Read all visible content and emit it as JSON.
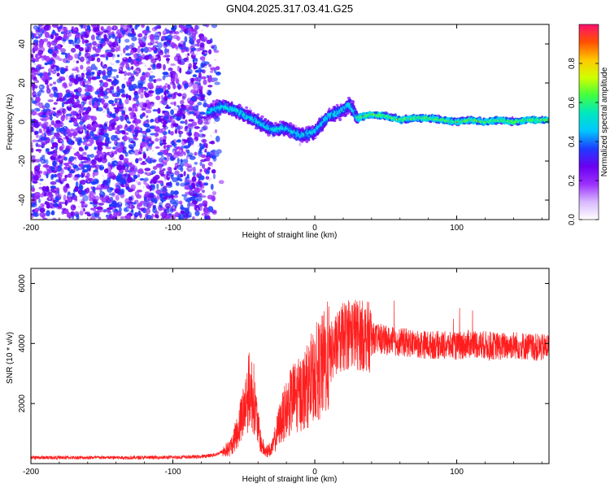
{
  "chart_data": [
    {
      "type": "heatmap",
      "title": "GN04.2025.317.03.41.G25",
      "xlabel": "Height of straight line (km)",
      "ylabel": "Frequency (Hz)",
      "xlim": [
        -200,
        165
      ],
      "ylim": [
        -50,
        50
      ],
      "x_ticks": [
        -200,
        -100,
        0,
        100
      ],
      "y_ticks": [
        -40,
        -20,
        0,
        20,
        40
      ],
      "colorbar": {
        "label": "Normalized spectral amplitude",
        "range": [
          0,
          1
        ],
        "ticks": [
          0.0,
          0.2,
          0.4,
          0.6,
          0.8
        ],
        "colors": [
          "#ffffff",
          "#d8b8ff",
          "#9b30ff",
          "#6a00f0",
          "#1e3cff",
          "#00c8ff",
          "#00e8c0",
          "#40ff40",
          "#d0ff00",
          "#ffc800",
          "#ff5000",
          "#ff1070"
        ]
      },
      "signal_trace": {
        "x": [
          -75,
          -65,
          -55,
          -45,
          -40,
          -30,
          -20,
          -10,
          0,
          10,
          20,
          25,
          30,
          40,
          50,
          60,
          70,
          80,
          90,
          100,
          110,
          120,
          130,
          140,
          150,
          160
        ],
        "freq": [
          5,
          8,
          6,
          2,
          0,
          -4,
          -3,
          -7,
          -5,
          3,
          6,
          9,
          2,
          4,
          3,
          1,
          2,
          2,
          1,
          0,
          1,
          0,
          1,
          0,
          1,
          1
        ]
      },
      "grid": false
    },
    {
      "type": "line",
      "xlabel": "Height of straight line (km)",
      "ylabel": "SNR (10 * v/v)",
      "xlim": [
        -200,
        165
      ],
      "ylim": [
        0,
        6500
      ],
      "x_ticks": [
        -200,
        -100,
        0,
        100
      ],
      "y_ticks": [
        2000,
        4000,
        6000
      ],
      "series": [
        {
          "color": "#ff1e1e",
          "x": [
            -200,
            -180,
            -160,
            -140,
            -120,
            -100,
            -80,
            -70,
            -60,
            -55,
            -50,
            -46,
            -43,
            -40,
            -38,
            -35,
            -30,
            -25,
            -20,
            -15,
            -10,
            -5,
            0,
            5,
            10,
            15,
            20,
            25,
            30,
            40,
            50,
            60,
            70,
            80,
            90,
            100,
            110,
            120,
            130,
            140,
            150,
            160,
            165
          ],
          "y": [
            200,
            200,
            200,
            200,
            200,
            210,
            230,
            300,
            500,
            1000,
            1800,
            2500,
            2200,
            1200,
            700,
            400,
            500,
            1300,
            1800,
            2200,
            2300,
            2600,
            3000,
            3200,
            3600,
            3900,
            4200,
            4400,
            4300,
            4200,
            4100,
            4050,
            4000,
            3950,
            3950,
            3900,
            4000,
            3950,
            3900,
            3950,
            3900,
            3850,
            3900
          ]
        }
      ],
      "grid": false
    }
  ]
}
